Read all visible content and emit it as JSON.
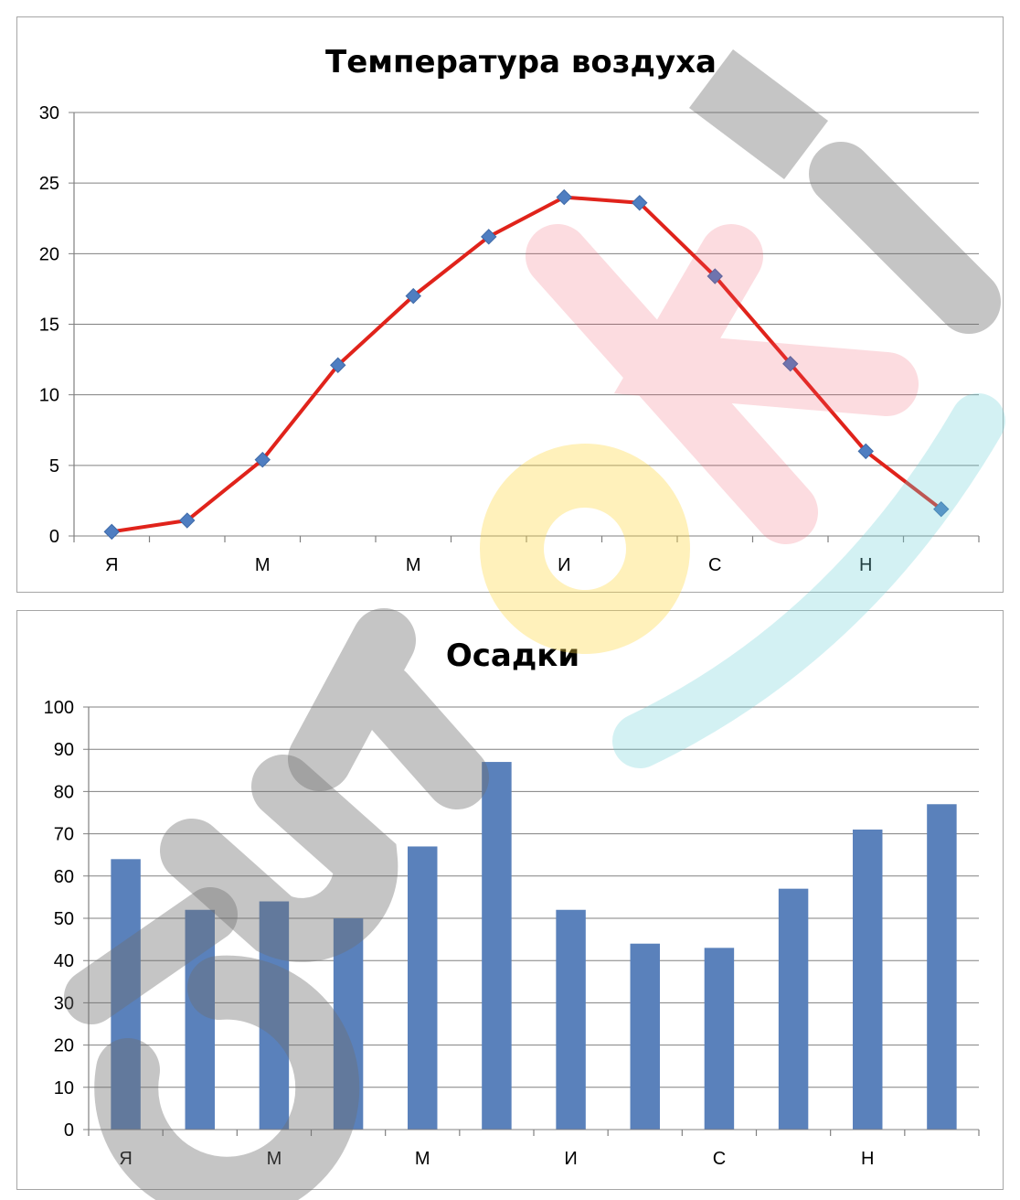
{
  "chart_data": [
    {
      "type": "line",
      "title": "Температура воздуха",
      "categories": [
        "Я",
        "",
        "М",
        "",
        "М",
        "",
        "И",
        "",
        "С",
        "",
        "Н",
        ""
      ],
      "values": [
        0.3,
        1.1,
        5.4,
        12.1,
        17.0,
        21.2,
        24.0,
        23.6,
        18.4,
        12.2,
        6.0,
        1.9
      ],
      "ylim": [
        0,
        30
      ],
      "yticks": [
        0,
        5,
        10,
        15,
        20,
        25,
        30
      ],
      "grid": true,
      "line_color": "#e0231b",
      "marker_color": "#4f7ec1"
    },
    {
      "type": "bar",
      "title": "Осадки",
      "categories": [
        "Я",
        "",
        "М",
        "",
        "М",
        "",
        "И",
        "",
        "С",
        "",
        "Н",
        ""
      ],
      "values": [
        64,
        52,
        54,
        50,
        67,
        87,
        52,
        44,
        43,
        57,
        71,
        77
      ],
      "ylim": [
        0,
        100
      ],
      "yticks": [
        0,
        10,
        20,
        30,
        40,
        50,
        60,
        70,
        80,
        90,
        100
      ],
      "grid": true,
      "bar_color": "#5a81bb"
    }
  ]
}
